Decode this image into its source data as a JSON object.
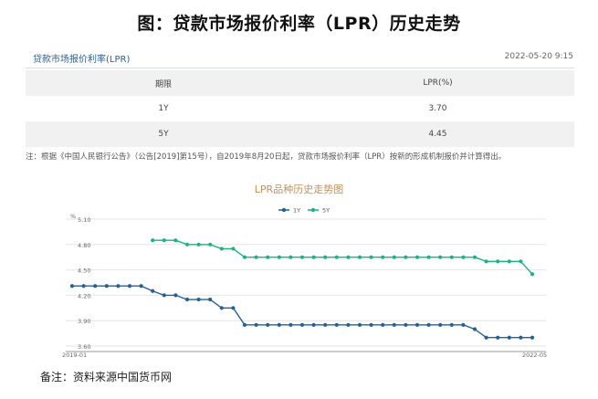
{
  "page_title": "图：贷款市场报价利率（LPR）历史走势",
  "card": {
    "name": "贷款市场报价利率(LPR)",
    "timestamp": "2022-05-20 9:15"
  },
  "table": {
    "headers": [
      "期限",
      "LPR(%)"
    ],
    "rows": [
      [
        "1Y",
        "3.70"
      ],
      [
        "5Y",
        "4.45"
      ]
    ]
  },
  "note": "注：根据《中国人民银行公告》（公告[2019]第15号），自2019年8月20日起，贷款市场报价利率（LPR）按新的形成机制报价并计算得出。",
  "footnote": "备注：资料来源中国货币网",
  "colors": {
    "series_1y": "#23619b",
    "series_5y": "#19b57f",
    "chart_title": "#c8905a"
  },
  "chart_data": {
    "type": "line",
    "title": "LPR品种历史走势图",
    "ylabel": "%",
    "ylim": [
      3.6,
      5.1
    ],
    "yticks": [
      "5.10",
      "4.80",
      "4.50",
      "4.20",
      "3.90",
      "3.60"
    ],
    "x_tick_labels": [
      "2019-01",
      "2022-05"
    ],
    "legend_position": "top",
    "grid": true,
    "series": [
      {
        "name": "1Y",
        "values": [
          4.31,
          4.31,
          4.31,
          4.31,
          4.31,
          4.31,
          4.31,
          4.25,
          4.2,
          4.2,
          4.15,
          4.15,
          4.15,
          4.05,
          4.05,
          3.85,
          3.85,
          3.85,
          3.85,
          3.85,
          3.85,
          3.85,
          3.85,
          3.85,
          3.85,
          3.85,
          3.85,
          3.85,
          3.85,
          3.85,
          3.85,
          3.85,
          3.85,
          3.85,
          3.85,
          3.8,
          3.7,
          3.7,
          3.7,
          3.7,
          3.7
        ]
      },
      {
        "name": "5Y",
        "values": [
          null,
          null,
          null,
          null,
          null,
          null,
          null,
          4.85,
          4.85,
          4.85,
          4.8,
          4.8,
          4.8,
          4.75,
          4.75,
          4.65,
          4.65,
          4.65,
          4.65,
          4.65,
          4.65,
          4.65,
          4.65,
          4.65,
          4.65,
          4.65,
          4.65,
          4.65,
          4.65,
          4.65,
          4.65,
          4.65,
          4.65,
          4.65,
          4.65,
          4.65,
          4.6,
          4.6,
          4.6,
          4.6,
          4.45
        ]
      }
    ]
  }
}
